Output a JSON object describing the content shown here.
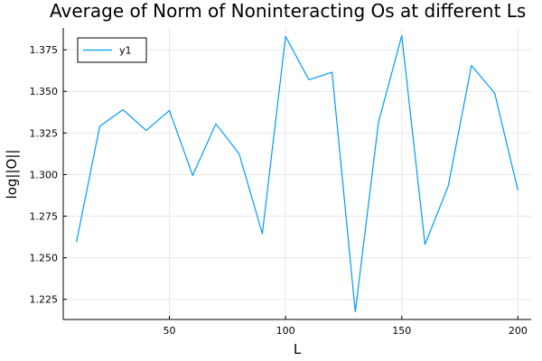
{
  "chart_data": {
    "type": "line",
    "title": "Average of Norm of Noninteracting Os at different Ls",
    "xlabel": "L",
    "ylabel": "log||O||",
    "x": [
      10,
      20,
      30,
      40,
      50,
      60,
      70,
      80,
      90,
      100,
      110,
      120,
      130,
      140,
      150,
      160,
      170,
      180,
      190,
      200
    ],
    "series": [
      {
        "name": "y1",
        "color": "#009af9",
        "values": [
          1.2595,
          1.329,
          1.339,
          1.3265,
          1.3385,
          1.2995,
          1.3305,
          1.3125,
          1.2645,
          1.383,
          1.357,
          1.3615,
          1.2175,
          1.3315,
          1.3835,
          1.258,
          1.293,
          1.3655,
          1.349,
          1.2905
        ]
      }
    ],
    "xlim": [
      4.3,
      205.7
    ],
    "ylim": [
      1.2129,
      1.3881
    ],
    "xticks": [
      50,
      100,
      150,
      200
    ],
    "xtick_labels": [
      "50",
      "100",
      "150",
      "200"
    ],
    "yticks": [
      1.225,
      1.25,
      1.275,
      1.3,
      1.325,
      1.35,
      1.375
    ],
    "ytick_labels": [
      "1.225",
      "1.250",
      "1.275",
      "1.300",
      "1.325",
      "1.350",
      "1.375"
    ],
    "grid": true,
    "legend": {
      "position": "top-left",
      "entries": [
        "y1"
      ]
    }
  }
}
